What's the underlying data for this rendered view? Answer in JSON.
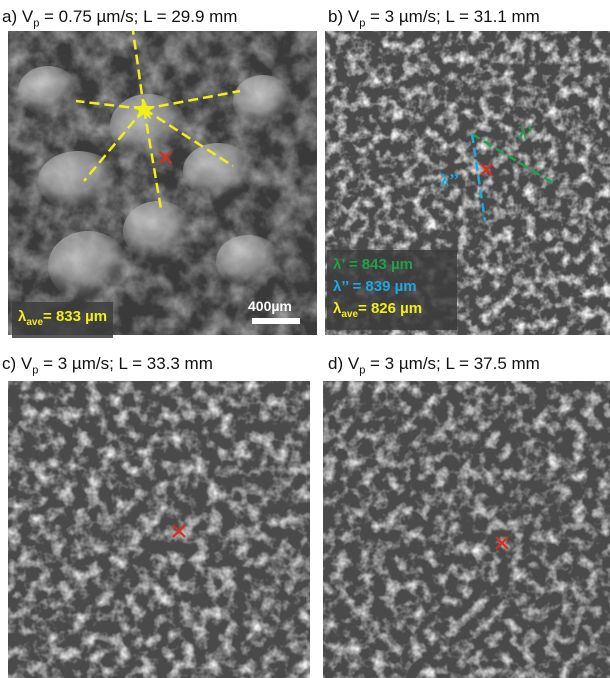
{
  "panels": [
    {
      "id": "a",
      "title_prefix": "a) V",
      "title_sub": "p",
      "title_suffix": " = 0.75 µm/s; L = 29.9 mm"
    },
    {
      "id": "b",
      "title_prefix": "b) V",
      "title_sub": "p",
      "title_suffix": " = 3 µm/s; L = 31.1 mm"
    },
    {
      "id": "c",
      "title_prefix": "c) V",
      "title_sub": "p",
      "title_suffix": " = 3 µm/s; L = 33.3 mm"
    },
    {
      "id": "d",
      "title_prefix": "d) V",
      "title_sub": "p",
      "title_suffix": " = 3 µm/s; L = 37.5 mm"
    }
  ],
  "panel_a": {
    "lambda_ave_symbol": "λ",
    "lambda_ave_sub": "ave",
    "lambda_ave_value": "= 833 µm",
    "scale_bar_label": "400µm"
  },
  "panel_b": {
    "lambda_prime_label": "λ’",
    "lambda_prime_value": "= 843 µm",
    "lambda_dprime_label": "λ’’",
    "lambda_dprime_value": "= 839 µm",
    "lambda_ave_symbol": "λ",
    "lambda_ave_sub": "ave",
    "lambda_ave_value": "= 826 µm",
    "annot_prime": "λ’",
    "annot_dprime": "λ’’"
  },
  "colors": {
    "yellow": "#f2ee1a",
    "green": "#1fa04a",
    "cyan": "#1ea8e0",
    "red": "#e02a1a",
    "title": "#111111"
  }
}
